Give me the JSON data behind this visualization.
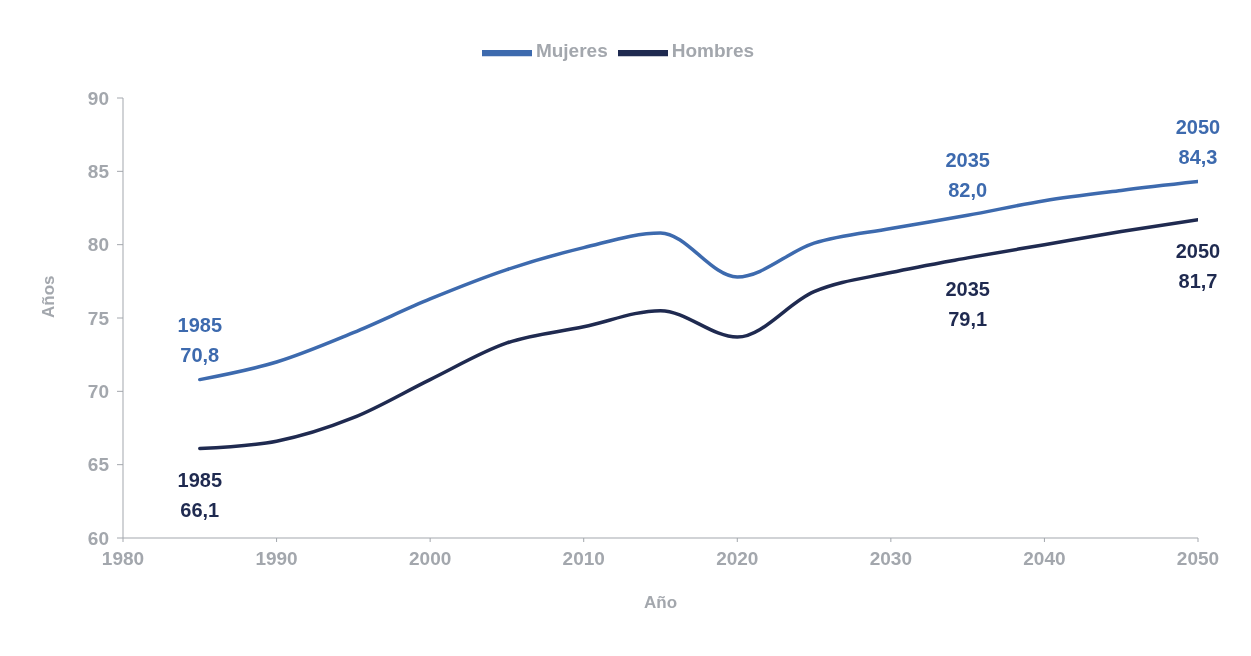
{
  "chart_data": {
    "type": "line",
    "xlabel": "Año",
    "ylabel": "Años",
    "x": [
      1985,
      1990,
      1995,
      2000,
      2005,
      2010,
      2015,
      2020,
      2025,
      2030,
      2035,
      2040,
      2045,
      2050
    ],
    "series": [
      {
        "name": "Mujeres",
        "color": "#3d6aae",
        "values": [
          70.8,
          72.0,
          74.0,
          76.3,
          78.3,
          79.8,
          80.8,
          77.8,
          80.1,
          81.1,
          82.0,
          83.0,
          83.7,
          84.3
        ]
      },
      {
        "name": "Hombres",
        "color": "#1f2a50",
        "values": [
          66.1,
          66.6,
          68.2,
          70.8,
          73.3,
          74.4,
          75.5,
          73.7,
          76.8,
          78.1,
          79.1,
          80.0,
          80.9,
          81.7
        ]
      }
    ],
    "xlim": [
      1980,
      2050
    ],
    "xticks": [
      1980,
      1990,
      2000,
      2010,
      2020,
      2030,
      2040,
      2050
    ],
    "ylim": [
      60,
      90
    ],
    "yticks": [
      60,
      65,
      70,
      75,
      80,
      85,
      90
    ],
    "grid": false,
    "legend": "top",
    "marker": "none",
    "line_style": "solid",
    "annotations": [
      {
        "text": "1985\n70,8",
        "x": 1985,
        "y": 70.8
      },
      {
        "text": "2035\n82,0",
        "x": 2035,
        "y": 82.0
      },
      {
        "text": "2050\n84,3",
        "x": 2050,
        "y": 84.3
      },
      {
        "text": "1985\n66,1",
        "x": 1985,
        "y": 66.1
      },
      {
        "text": "2035\n79,1",
        "x": 2035,
        "y": 79.1
      },
      {
        "text": "2050\n81,7",
        "x": 2050,
        "y": 81.7
      }
    ]
  }
}
